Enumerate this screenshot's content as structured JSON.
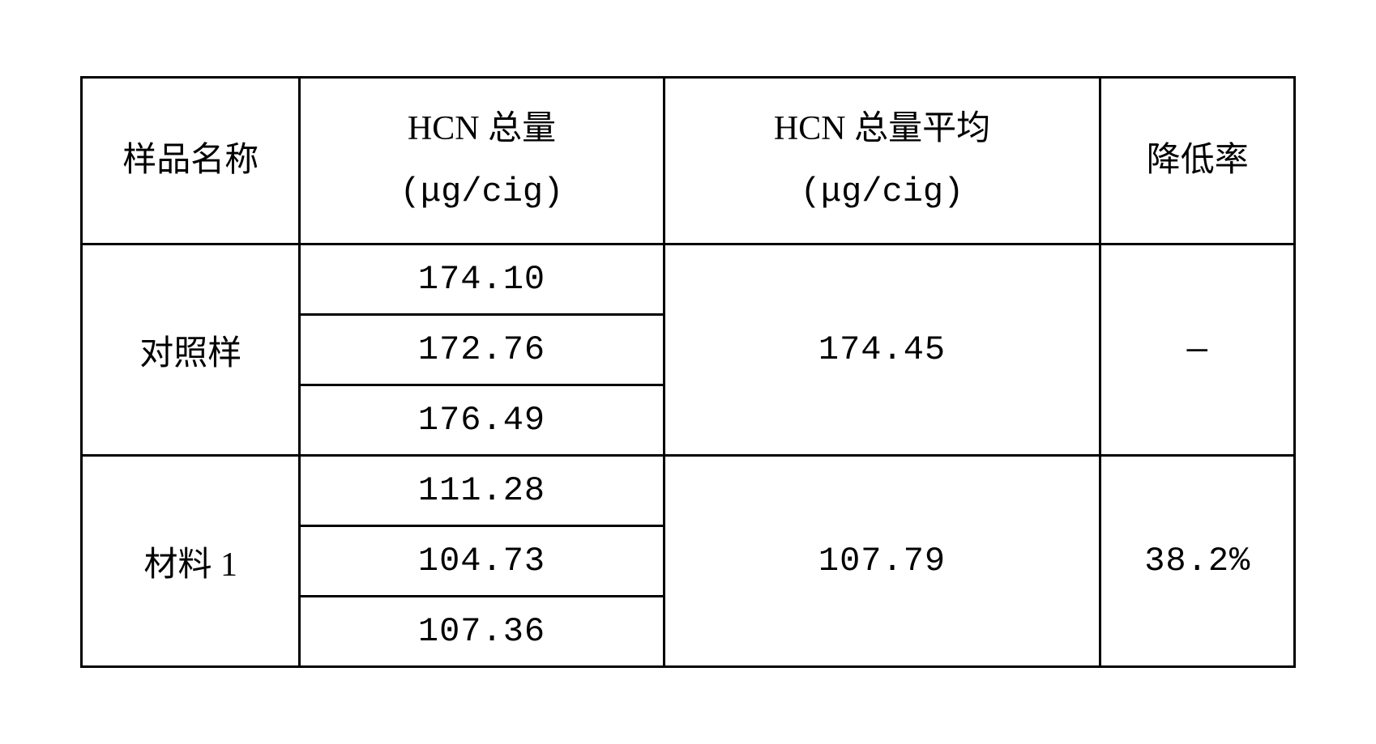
{
  "table": {
    "columns": [
      {
        "label": "样品名称",
        "unit": ""
      },
      {
        "label": "HCN 总量",
        "unit": "(μg/cig)"
      },
      {
        "label": "HCN 总量平均",
        "unit": "(μg/cig)"
      },
      {
        "label": "降低率",
        "unit": ""
      }
    ],
    "groups": [
      {
        "name": "对照样",
        "values": [
          "174.10",
          "172.76",
          "176.49"
        ],
        "average": "174.45",
        "reduction": "—"
      },
      {
        "name": "材料 1",
        "values": [
          "111.28",
          "104.73",
          "107.36"
        ],
        "average": "107.79",
        "reduction": "38.2%"
      }
    ],
    "styling": {
      "border_color": "#000000",
      "border_width": 3,
      "background_color": "#ffffff",
      "text_color": "#000000",
      "font_size": 42,
      "font_family_cjk": "SimSun",
      "font_family_ascii": "Courier New",
      "col_widths_pct": [
        18,
        30,
        36,
        16
      ]
    }
  }
}
